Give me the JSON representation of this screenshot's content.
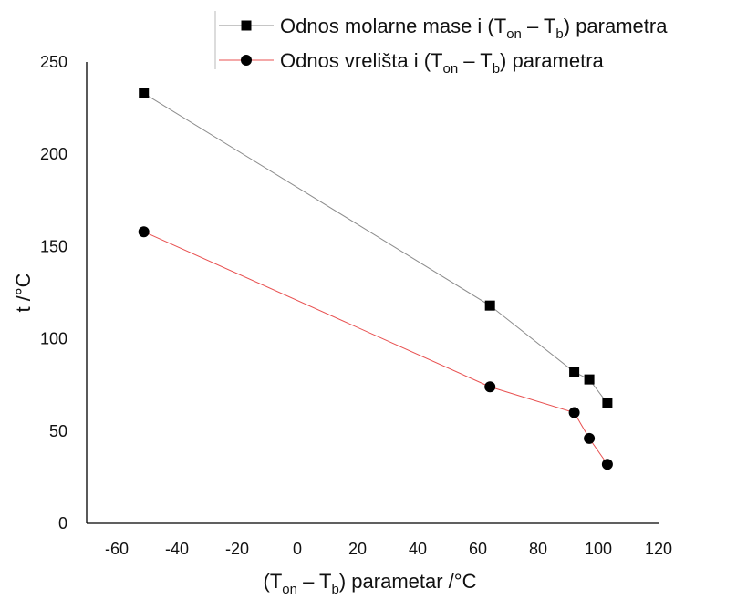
{
  "chart_data": {
    "type": "line",
    "title": "",
    "xlabel": {
      "prefix": "(T",
      "sub1": "on",
      "mid": " – T",
      "sub2": "b",
      "suffix": ") parametar /°C"
    },
    "ylabel": "t /°C",
    "xlim": [
      -70,
      120
    ],
    "ylim": [
      0,
      250
    ],
    "xticks": [
      -60,
      -40,
      -20,
      0,
      20,
      40,
      60,
      80,
      100,
      120
    ],
    "yticks": [
      0,
      50,
      100,
      150,
      200,
      250
    ],
    "legend_position": "top-right",
    "grid": false,
    "series": [
      {
        "name": {
          "prefix": "Odnos molarne mase i (T",
          "sub1": "on",
          "mid": " – T",
          "sub2": "b",
          "suffix": ") parametra"
        },
        "marker": "square",
        "line_color": "#8c8c8c",
        "marker_color": "#000000",
        "points": [
          {
            "x": -51,
            "y": 233
          },
          {
            "x": 64,
            "y": 118
          },
          {
            "x": 92,
            "y": 82
          },
          {
            "x": 97,
            "y": 78
          },
          {
            "x": 103,
            "y": 65
          }
        ]
      },
      {
        "name": {
          "prefix": "Odnos vrelišta i (T",
          "sub1": "on",
          "mid": " – T",
          "sub2": "b",
          "suffix": ") parametra"
        },
        "marker": "circle",
        "line_color": "#e85050",
        "marker_color": "#000000",
        "points": [
          {
            "x": -51,
            "y": 158
          },
          {
            "x": 64,
            "y": 74
          },
          {
            "x": 92,
            "y": 60
          },
          {
            "x": 97,
            "y": 46
          },
          {
            "x": 103,
            "y": 32
          }
        ]
      }
    ]
  }
}
